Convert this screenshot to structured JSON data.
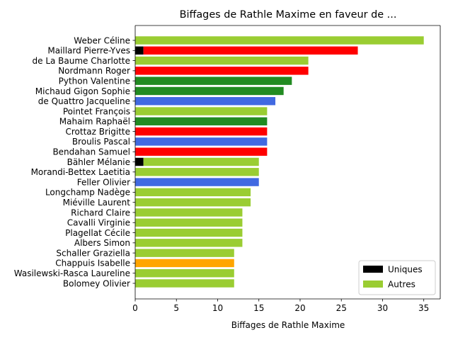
{
  "chart_data": {
    "type": "bar",
    "orientation": "horizontal",
    "title": "Biffages de Rathle Maxime en faveur de ...",
    "xlabel": "Biffages de Rathle Maxime",
    "ylabel": "",
    "xlim": [
      0,
      37
    ],
    "xticks": [
      0,
      5,
      10,
      15,
      20,
      25,
      30,
      35
    ],
    "grid": false,
    "legend_position": "bottom-right",
    "categories": [
      "Weber Céline",
      "Maillard Pierre-Yves",
      "de La Baume Charlotte",
      "Nordmann Roger",
      "Python Valentine",
      "Michaud Gigon Sophie",
      "de Quattro Jacqueline",
      "Pointet François",
      "Mahaim Raphaël",
      "Crottaz Brigitte",
      "Broulis Pascal",
      "Bendahan Samuel",
      "Bähler Mélanie",
      "Morandi-Bettex Laetitia",
      "Feller Olivier",
      "Longchamp Nadège",
      "Miéville Laurent",
      "Richard Claire",
      "Cavalli Virginie",
      "Plagellat Cécile",
      "Albers Simon",
      "Schaller Graziella",
      "Chappuis Isabelle",
      "Wasilewski-Rasca Laureline",
      "Bolomey Olivier"
    ],
    "series": [
      {
        "name": "Uniques",
        "color": "#000000",
        "values": [
          0,
          1,
          0,
          0,
          0,
          0,
          0,
          0,
          0,
          0,
          0,
          0,
          1,
          0,
          0,
          0,
          0,
          0,
          0,
          0,
          0,
          0,
          0,
          0,
          0
        ]
      },
      {
        "name": "Autres",
        "color": "#9acd32",
        "values": [
          35,
          26,
          21,
          21,
          19,
          18,
          17,
          16,
          16,
          16,
          16,
          16,
          14,
          15,
          15,
          14,
          14,
          13,
          13,
          13,
          13,
          12,
          12,
          12,
          12
        ]
      }
    ],
    "bar_colors": [
      "#9acd32",
      "#ff0000",
      "#9acd32",
      "#ff0000",
      "#228b22",
      "#228b22",
      "#4169e1",
      "#9acd32",
      "#228b22",
      "#ff0000",
      "#4169e1",
      "#ff0000",
      "#9acd32",
      "#9acd32",
      "#4169e1",
      "#9acd32",
      "#9acd32",
      "#9acd32",
      "#9acd32",
      "#9acd32",
      "#9acd32",
      "#9acd32",
      "#ffa500",
      "#9acd32",
      "#9acd32"
    ]
  }
}
